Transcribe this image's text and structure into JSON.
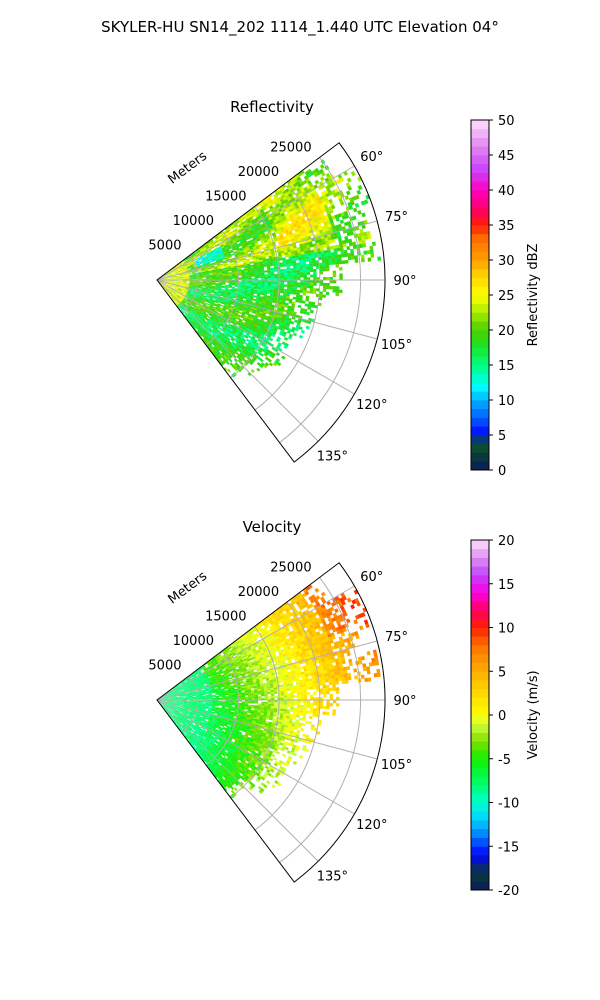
{
  "figure": {
    "title": "SKYLER-HU  SN14_202  1114_1.440 UTC Elevation 04°"
  },
  "chart_data": [
    {
      "type": "heatmap",
      "subtype": "polar-sector (radar PPI)",
      "title": "Reflectivity",
      "range_axis_label": "Meters",
      "range_ticks": [
        "5000",
        "10000",
        "15000",
        "20000",
        "25000"
      ],
      "range_tick_values": [
        5000,
        10000,
        15000,
        20000,
        25000
      ],
      "azimuth_ticks": [
        "60°",
        "75°",
        "90°",
        "105°",
        "120°",
        "135°"
      ],
      "azimuth_tick_values": [
        60,
        75,
        90,
        105,
        120,
        135
      ],
      "azimuth_range_deg": [
        53,
        143
      ],
      "range_max_m": 28000,
      "grid": true,
      "colorbar": {
        "label": "Reflectivity dBZ",
        "range": [
          0,
          50
        ],
        "ticks": [
          "0",
          "5",
          "10",
          "15",
          "20",
          "25",
          "30",
          "35",
          "40",
          "45",
          "50"
        ],
        "stops": [
          [
            0,
            "#0a1a5c"
          ],
          [
            2,
            "#0a3a3a"
          ],
          [
            4,
            "#0a5a2a"
          ],
          [
            5,
            "#0000ff"
          ],
          [
            7,
            "#0050ff"
          ],
          [
            10,
            "#00b0ff"
          ],
          [
            12,
            "#00ffff"
          ],
          [
            15,
            "#00ff80"
          ],
          [
            18,
            "#20e020"
          ],
          [
            20,
            "#4ccf00"
          ],
          [
            23,
            "#b8f000"
          ],
          [
            25,
            "#ffff00"
          ],
          [
            28,
            "#ffd000"
          ],
          [
            30,
            "#ffa000"
          ],
          [
            33,
            "#ff7000"
          ],
          [
            35,
            "#ff2000"
          ],
          [
            37,
            "#ff0060"
          ],
          [
            40,
            "#ff00c0"
          ],
          [
            43,
            "#cc44ff"
          ],
          [
            46,
            "#e080f0"
          ],
          [
            50,
            "#ffe0ff"
          ]
        ]
      },
      "field_pattern": [
        {
          "az_deg": 60,
          "range_m": [
            0,
            28000
          ],
          "value_dbz": 22
        },
        {
          "az_deg": 75,
          "range_m": [
            0,
            27000
          ],
          "value_dbz": 22
        },
        {
          "az_deg": 90,
          "range_m": [
            0,
            17000
          ],
          "value_dbz": 19
        },
        {
          "az_deg": 110,
          "range_m": [
            0,
            16000
          ],
          "value_dbz": 18
        },
        {
          "az_deg": 135,
          "range_m": [
            0,
            18000
          ],
          "value_dbz": 19
        },
        {
          "az_deg": 65,
          "range_m": [
            5000,
            8000
          ],
          "value_dbz": 13
        }
      ]
    },
    {
      "type": "heatmap",
      "subtype": "polar-sector (radar PPI)",
      "title": "Velocity",
      "range_axis_label": "Meters",
      "range_ticks": [
        "5000",
        "10000",
        "15000",
        "20000",
        "25000"
      ],
      "range_tick_values": [
        5000,
        10000,
        15000,
        20000,
        25000
      ],
      "azimuth_ticks": [
        "60°",
        "75°",
        "90°",
        "105°",
        "120°",
        "135°"
      ],
      "azimuth_tick_values": [
        60,
        75,
        90,
        105,
        120,
        135
      ],
      "azimuth_range_deg": [
        53,
        143
      ],
      "range_max_m": 28000,
      "grid": true,
      "colorbar": {
        "label": "Velocity (m/s)",
        "range": [
          -20,
          20
        ],
        "ticks": [
          "-20",
          "-15",
          "-10",
          "-5",
          "0",
          "5",
          "10",
          "15",
          "20"
        ],
        "stops": [
          [
            -20,
            "#0a1a5c"
          ],
          [
            -18,
            "#0a3a3a"
          ],
          [
            -16,
            "#0000ff"
          ],
          [
            -14,
            "#0070ff"
          ],
          [
            -12,
            "#00d0ff"
          ],
          [
            -10,
            "#00ffd0"
          ],
          [
            -8,
            "#00ff70"
          ],
          [
            -5,
            "#10f000"
          ],
          [
            -3,
            "#80e000"
          ],
          [
            -1,
            "#d0ff40"
          ],
          [
            0,
            "#ffff00"
          ],
          [
            2,
            "#ffe000"
          ],
          [
            5,
            "#ffb000"
          ],
          [
            8,
            "#ff7000"
          ],
          [
            10,
            "#ff2000"
          ],
          [
            12,
            "#ff0060"
          ],
          [
            14,
            "#ff00e0"
          ],
          [
            16,
            "#c040ff"
          ],
          [
            18,
            "#e090f0"
          ],
          [
            20,
            "#ffe0ff"
          ]
        ]
      },
      "field_pattern": [
        {
          "az_deg": 60,
          "range_m": [
            15000,
            28000
          ],
          "value_ms": 8
        },
        {
          "az_deg": 75,
          "range_m": [
            12000,
            27000
          ],
          "value_ms": 5
        },
        {
          "az_deg": 90,
          "range_m": [
            8000,
            17000
          ],
          "value_ms": 1
        },
        {
          "az_deg": 110,
          "range_m": [
            5000,
            15000
          ],
          "value_ms": -2
        },
        {
          "az_deg": 135,
          "range_m": [
            5000,
            18000
          ],
          "value_ms": -4
        },
        {
          "az_deg": 90,
          "range_m": [
            0,
            8000
          ],
          "value_ms": -8
        }
      ]
    }
  ]
}
